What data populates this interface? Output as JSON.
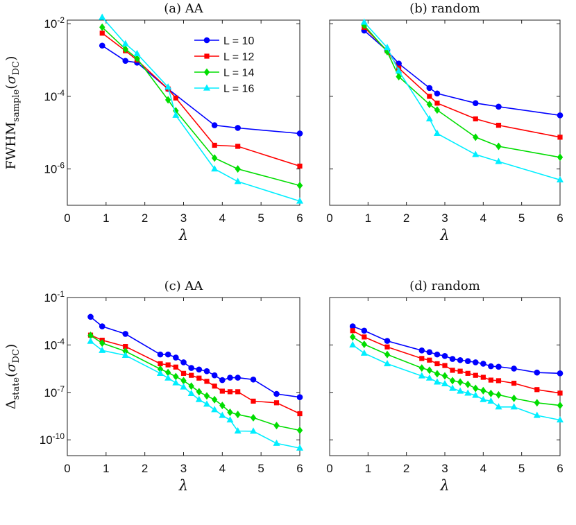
{
  "chart_data": [
    {
      "type": "line",
      "title": "(a) AA",
      "xlabel": "λ",
      "ylabel_main": "FWHM",
      "ylabel_sub": "sample",
      "ylabel_paren": "σ",
      "ylabel_paren_sub": "DC",
      "yscale": "log",
      "xlim": [
        0,
        6
      ],
      "ylim_exp": [
        -7,
        -1.9
      ],
      "xticks": [
        "0",
        "1",
        "2",
        "3",
        "4",
        "5",
        "6"
      ],
      "yticks": [
        {
          "base": "10",
          "exp": "-2"
        },
        {
          "base": "10",
          "exp": "-4"
        },
        {
          "base": "10",
          "exp": "-6"
        }
      ],
      "legend": {
        "position": "top-right"
      },
      "series": [
        {
          "name": "L = 10",
          "color": "#0000ff",
          "marker": "circle",
          "x": [
            0.9,
            1.5,
            1.8,
            2.6,
            3.8,
            4.4,
            6.0
          ],
          "y": [
            0.0025,
            0.00095,
            0.00085,
            0.00016,
            1.6e-05,
            1.35e-05,
            9.5e-06
          ]
        },
        {
          "name": "L = 12",
          "color": "#ff0000",
          "marker": "square",
          "x": [
            0.9,
            1.5,
            1.8,
            2.6,
            2.8,
            3.8,
            4.4,
            6.0
          ],
          "y": [
            0.0055,
            0.0018,
            0.001,
            0.00016,
            9e-05,
            4.5e-06,
            4.2e-06,
            1.2e-06
          ]
        },
        {
          "name": "L = 14",
          "color": "#00dd00",
          "marker": "diamond",
          "x": [
            0.9,
            1.5,
            1.8,
            2.6,
            2.8,
            3.8,
            4.4,
            6.0
          ],
          "y": [
            0.008,
            0.002,
            0.0011,
            8e-05,
            4e-05,
            2e-06,
            1e-06,
            3.5e-07
          ]
        },
        {
          "name": "L = 16",
          "color": "#00eeff",
          "marker": "triangle",
          "x": [
            0.9,
            1.5,
            1.8,
            2.6,
            2.8,
            3.8,
            4.4,
            6.0
          ],
          "y": [
            0.015,
            0.0028,
            0.0015,
            0.00018,
            3e-05,
            1e-06,
            4.5e-07,
            1.3e-07
          ]
        }
      ]
    },
    {
      "type": "line",
      "title": "(b) random",
      "xlabel": "λ",
      "yscale": "log",
      "xlim": [
        0,
        6
      ],
      "ylim_exp": [
        -7,
        -1.9
      ],
      "xticks": [
        "0",
        "1",
        "2",
        "3",
        "4",
        "5",
        "6"
      ],
      "series": [
        {
          "name": "L = 10",
          "color": "#0000ff",
          "marker": "circle",
          "x": [
            0.9,
            1.5,
            1.8,
            2.6,
            2.8,
            3.8,
            4.4,
            6.0
          ],
          "y": [
            0.0065,
            0.0018,
            0.0008,
            0.00017,
            0.00012,
            6.5e-05,
            5.2e-05,
            3e-05
          ]
        },
        {
          "name": "L = 12",
          "color": "#ff0000",
          "marker": "square",
          "x": [
            0.9,
            1.5,
            1.8,
            2.6,
            2.8,
            3.8,
            4.4,
            6.0
          ],
          "y": [
            0.008,
            0.0018,
            0.0006,
            0.0001,
            6.5e-05,
            2.4e-05,
            1.6e-05,
            7.5e-06
          ]
        },
        {
          "name": "L = 14",
          "color": "#00dd00",
          "marker": "diamond",
          "x": [
            0.9,
            1.5,
            1.8,
            2.6,
            2.8,
            3.8,
            4.4,
            6.0
          ],
          "y": [
            0.009,
            0.0017,
            0.00035,
            6e-05,
            4.2e-05,
            7.5e-06,
            4.2e-06,
            2.1e-06
          ]
        },
        {
          "name": "L = 16",
          "color": "#00eeff",
          "marker": "triangle",
          "x": [
            0.9,
            1.5,
            1.8,
            2.6,
            2.8,
            3.8,
            4.4,
            6.0
          ],
          "y": [
            0.011,
            0.0022,
            0.0005,
            2.4e-05,
            9.5e-06,
            2.5e-06,
            1.6e-06,
            5e-07
          ]
        }
      ]
    },
    {
      "type": "line",
      "title": "(c) AA",
      "xlabel": "λ",
      "ylabel_main": "Δ",
      "ylabel_sub": "state",
      "ylabel_paren": "σ",
      "ylabel_paren_sub": "DC",
      "yscale": "log",
      "xlim": [
        0,
        6
      ],
      "ylim_exp": [
        -11,
        -1
      ],
      "xticks": [
        "0",
        "1",
        "2",
        "3",
        "4",
        "5",
        "6"
      ],
      "yticks": [
        {
          "base": "10",
          "exp": "-1"
        },
        {
          "base": "10",
          "exp": "-4"
        },
        {
          "base": "10",
          "exp": "-7"
        },
        {
          "base": "10",
          "exp": "-10"
        }
      ],
      "series": [
        {
          "name": "L = 10",
          "color": "#0000ff",
          "marker": "circle",
          "x": [
            0.6,
            0.9,
            1.5,
            2.4,
            2.6,
            2.8,
            3.0,
            3.2,
            3.4,
            3.6,
            3.8,
            4.0,
            4.2,
            4.4,
            4.8,
            5.4,
            6.0
          ],
          "y": [
            0.006,
            0.0015,
            0.0005,
            2.5e-05,
            2.5e-05,
            1.6e-05,
            8e-06,
            3.5e-06,
            2.8e-06,
            2.2e-06,
            1.2e-06,
            6e-07,
            8.5e-07,
            8.5e-07,
            6.5e-07,
            8e-08,
            5e-08
          ]
        },
        {
          "name": "L = 12",
          "color": "#ff0000",
          "marker": "square",
          "x": [
            0.6,
            0.9,
            1.5,
            2.4,
            2.6,
            2.8,
            3.0,
            3.2,
            3.4,
            3.6,
            3.8,
            4.0,
            4.2,
            4.4,
            4.8,
            5.4,
            6.0
          ],
          "y": [
            0.00042,
            0.0002,
            8e-05,
            6.5e-06,
            5.5e-06,
            4e-06,
            1.6e-06,
            1.2e-06,
            8e-07,
            5e-07,
            2.5e-07,
            1.2e-07,
            1.1e-07,
            1.1e-07,
            2.8e-08,
            2.2e-08,
            4.5e-09
          ]
        },
        {
          "name": "L = 14",
          "color": "#00dd00",
          "marker": "diamond",
          "x": [
            0.6,
            0.9,
            1.5,
            2.4,
            2.6,
            2.8,
            3.0,
            3.2,
            3.4,
            3.6,
            3.8,
            4.0,
            4.2,
            4.4,
            4.8,
            5.4,
            6.0
          ],
          "y": [
            0.0004,
            0.00013,
            4e-05,
            3e-06,
            1.8e-06,
            1e-06,
            5.5e-07,
            2.5e-07,
            1.1e-07,
            6e-08,
            3.5e-08,
            1.5e-08,
            5.5e-09,
            4e-09,
            2.5e-09,
            8e-10,
            4e-10
          ]
        },
        {
          "name": "L = 16",
          "color": "#00eeff",
          "marker": "triangle",
          "x": [
            0.6,
            0.9,
            1.5,
            2.4,
            2.6,
            2.8,
            3.0,
            3.2,
            3.4,
            3.6,
            3.8,
            4.0,
            4.2,
            4.4,
            4.8,
            5.4,
            6.0
          ],
          "y": [
            0.00017,
            4.5e-05,
            2.2e-05,
            1.6e-06,
            8e-07,
            4e-07,
            2.2e-07,
            8.5e-08,
            3.5e-08,
            1.8e-08,
            8e-09,
            3.5e-09,
            1.8e-09,
            3.6e-10,
            3.5e-10,
            6e-11,
            3e-11
          ]
        }
      ]
    },
    {
      "type": "line",
      "title": "(d) random",
      "xlabel": "λ",
      "yscale": "log",
      "xlim": [
        0,
        6
      ],
      "ylim_exp": [
        -11,
        -1
      ],
      "xticks": [
        "0",
        "1",
        "2",
        "3",
        "4",
        "5",
        "6"
      ],
      "series": [
        {
          "name": "L = 10",
          "color": "#0000ff",
          "marker": "circle",
          "x": [
            0.6,
            0.9,
            1.5,
            2.4,
            2.6,
            2.8,
            3.0,
            3.2,
            3.4,
            3.6,
            3.8,
            4.0,
            4.2,
            4.4,
            4.8,
            5.4,
            6.0
          ],
          "y": [
            0.0015,
            0.0008,
            0.00018,
            4.5e-05,
            3.5e-05,
            2.5e-05,
            2e-05,
            1.3e-05,
            1.1e-05,
            9.5e-06,
            8e-06,
            6.5e-06,
            4.5e-06,
            4.2e-06,
            3.2e-06,
            1.8e-06,
            1.6e-06
          ]
        },
        {
          "name": "L = 12",
          "color": "#ff0000",
          "marker": "square",
          "x": [
            0.6,
            0.9,
            1.5,
            2.4,
            2.6,
            2.8,
            3.0,
            3.2,
            3.4,
            3.6,
            3.8,
            4.0,
            4.2,
            4.4,
            4.8,
            5.4,
            6.0
          ],
          "y": [
            0.0008,
            0.00032,
            7.5e-05,
            1.4e-05,
            1.1e-05,
            6.5e-06,
            5e-06,
            2.5e-06,
            2.2e-06,
            1.6e-06,
            1.2e-06,
            9e-07,
            6e-07,
            5.5e-07,
            3.8e-07,
            1.5e-07,
            9e-08
          ]
        },
        {
          "name": "L = 14",
          "color": "#00dd00",
          "marker": "diamond",
          "x": [
            0.6,
            0.9,
            1.5,
            2.4,
            2.6,
            2.8,
            3.0,
            3.2,
            3.4,
            3.6,
            3.8,
            4.0,
            4.2,
            4.4,
            4.8,
            5.4,
            6.0
          ],
          "y": [
            0.00032,
            0.00011,
            2.5e-05,
            3.5e-06,
            2.5e-06,
            1.5e-06,
            1.1e-06,
            5.5e-07,
            4.5e-07,
            3.2e-07,
            1.8e-07,
            1.3e-07,
            8.5e-08,
            7e-08,
            4.2e-08,
            2.2e-08,
            1.5e-08
          ]
        },
        {
          "name": "L = 16",
          "color": "#00eeff",
          "marker": "triangle",
          "x": [
            0.6,
            0.9,
            1.5,
            2.4,
            2.6,
            2.8,
            3.0,
            3.2,
            3.4,
            3.6,
            3.8,
            4.0,
            4.2,
            4.4,
            4.8,
            5.4,
            6.0
          ],
          "y": [
            0.0001,
            3e-05,
            6.5e-06,
            1.1e-06,
            8e-07,
            4.5e-07,
            3.5e-07,
            1.8e-07,
            1.2e-07,
            9e-08,
            6.5e-08,
            3.5e-08,
            2.8e-08,
            1.2e-08,
            1.2e-08,
            3.5e-09,
            1.8e-09
          ]
        }
      ]
    }
  ]
}
